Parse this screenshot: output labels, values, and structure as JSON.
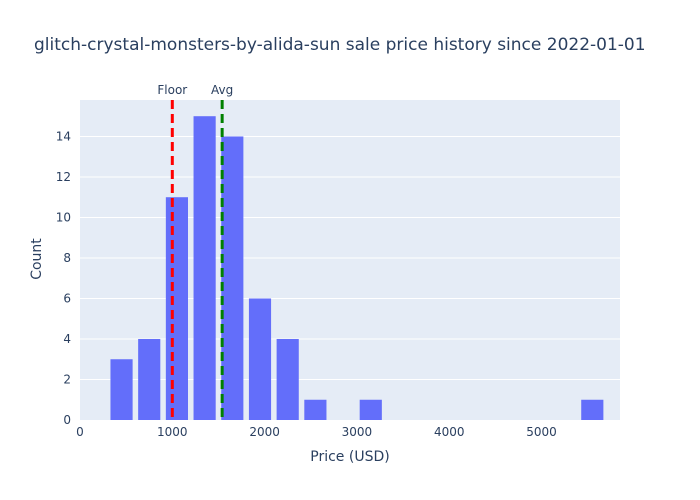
{
  "chart_data": {
    "type": "bar",
    "title": "glitch-crystal-monsters-by-alida-sun sale price history since 2022-01-01",
    "xlabel": "Price (USD)",
    "ylabel": "Count",
    "xlim": [
      0,
      5850
    ],
    "ylim": [
      0,
      15.8
    ],
    "x_ticks": [
      0,
      1000,
      2000,
      3000,
      4000,
      5000
    ],
    "y_ticks": [
      0,
      2,
      4,
      6,
      8,
      10,
      12,
      14
    ],
    "bin_width": 300,
    "bins": [
      {
        "start": 300,
        "end": 600,
        "count": 3
      },
      {
        "start": 600,
        "end": 900,
        "count": 4
      },
      {
        "start": 900,
        "end": 1200,
        "count": 11
      },
      {
        "start": 1200,
        "end": 1500,
        "count": 15
      },
      {
        "start": 1500,
        "end": 1800,
        "count": 14
      },
      {
        "start": 1800,
        "end": 2100,
        "count": 6
      },
      {
        "start": 2100,
        "end": 2400,
        "count": 4
      },
      {
        "start": 2400,
        "end": 2700,
        "count": 1
      },
      {
        "start": 2700,
        "end": 3000,
        "count": 0
      },
      {
        "start": 3000,
        "end": 3300,
        "count": 1
      },
      {
        "start": 3300,
        "end": 3600,
        "count": 0
      },
      {
        "start": 3600,
        "end": 3900,
        "count": 0
      },
      {
        "start": 3900,
        "end": 4200,
        "count": 0
      },
      {
        "start": 4200,
        "end": 4500,
        "count": 0
      },
      {
        "start": 4500,
        "end": 4800,
        "count": 0
      },
      {
        "start": 4800,
        "end": 5100,
        "count": 0
      },
      {
        "start": 5100,
        "end": 5400,
        "count": 0
      },
      {
        "start": 5400,
        "end": 5700,
        "count": 1
      }
    ],
    "bar_color": "#636efa",
    "plot_bgcolor": "#e5ecf6",
    "grid": true,
    "reference_lines": [
      {
        "label": "Floor",
        "x": 1000,
        "color": "#ff0000",
        "style": "dashed"
      },
      {
        "label": "Avg",
        "x": 1540,
        "color": "#008000",
        "style": "dashed"
      }
    ]
  }
}
